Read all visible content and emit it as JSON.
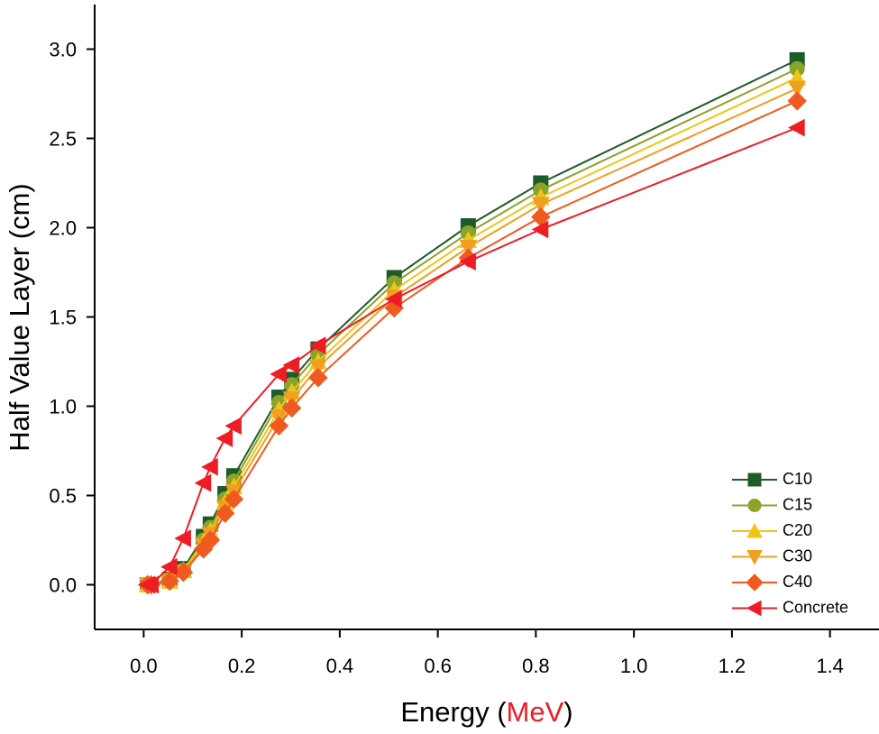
{
  "chart_data": {
    "type": "line",
    "xlabel": {
      "prefix": "Energy (",
      "highlight": "MeV",
      "suffix": ")",
      "highlight_color": "#ee1c25"
    },
    "ylabel": "Half Value Layer (cm)",
    "x": [
      0.008,
      0.015,
      0.053,
      0.081,
      0.122,
      0.136,
      0.166,
      0.184,
      0.276,
      0.302,
      0.356,
      0.511,
      0.662,
      0.81,
      1.333
    ],
    "series": [
      {
        "name": "C10",
        "color": "#1e5b2a",
        "marker": "square",
        "values": [
          0,
          0,
          0.03,
          0.09,
          0.27,
          0.34,
          0.51,
          0.61,
          1.05,
          1.15,
          1.32,
          1.72,
          2.01,
          2.25,
          2.94
        ]
      },
      {
        "name": "C15",
        "color": "#8aa32a",
        "marker": "circle",
        "values": [
          0,
          0,
          0.03,
          0.08,
          0.25,
          0.32,
          0.48,
          0.58,
          1.02,
          1.12,
          1.29,
          1.69,
          1.97,
          2.21,
          2.89
        ]
      },
      {
        "name": "C20",
        "color": "#f0c419",
        "marker": "triangle-up",
        "values": [
          0,
          0,
          0.02,
          0.08,
          0.24,
          0.3,
          0.46,
          0.55,
          0.98,
          1.08,
          1.25,
          1.65,
          1.93,
          2.17,
          2.84
        ]
      },
      {
        "name": "C30",
        "color": "#f0a020",
        "marker": "triangle-down",
        "values": [
          0,
          0,
          0.02,
          0.07,
          0.22,
          0.28,
          0.43,
          0.52,
          0.94,
          1.04,
          1.22,
          1.61,
          1.89,
          2.13,
          2.78
        ]
      },
      {
        "name": "C40",
        "color": "#f05a20",
        "marker": "diamond",
        "values": [
          0,
          0,
          0.02,
          0.07,
          0.2,
          0.25,
          0.4,
          0.48,
          0.89,
          0.99,
          1.16,
          1.55,
          1.83,
          2.06,
          2.71
        ]
      },
      {
        "name": "Concrete",
        "color": "#ee1c25",
        "marker": "triangle-left",
        "values": [
          0,
          0,
          0.1,
          0.26,
          0.57,
          0.66,
          0.82,
          0.89,
          1.18,
          1.23,
          1.34,
          1.6,
          1.81,
          1.99,
          2.56
        ]
      }
    ],
    "xlim": [
      -0.1,
      1.5
    ],
    "xticks": [
      {
        "value": 0,
        "label": "0.0"
      },
      0.2,
      0.4,
      0.6,
      0.8,
      {
        "value": 1,
        "label": "1.0"
      },
      1.2,
      1.4
    ],
    "ylim": [
      -0.25,
      3.25
    ],
    "yticks": [
      {
        "value": 0,
        "label": "0.0"
      },
      0.5,
      {
        "value": 1,
        "label": "1.0"
      },
      1.5,
      {
        "value": 2,
        "label": "2.0"
      },
      2.5,
      {
        "value": 3,
        "label": "3.0"
      }
    ],
    "legend": "lower-right"
  }
}
